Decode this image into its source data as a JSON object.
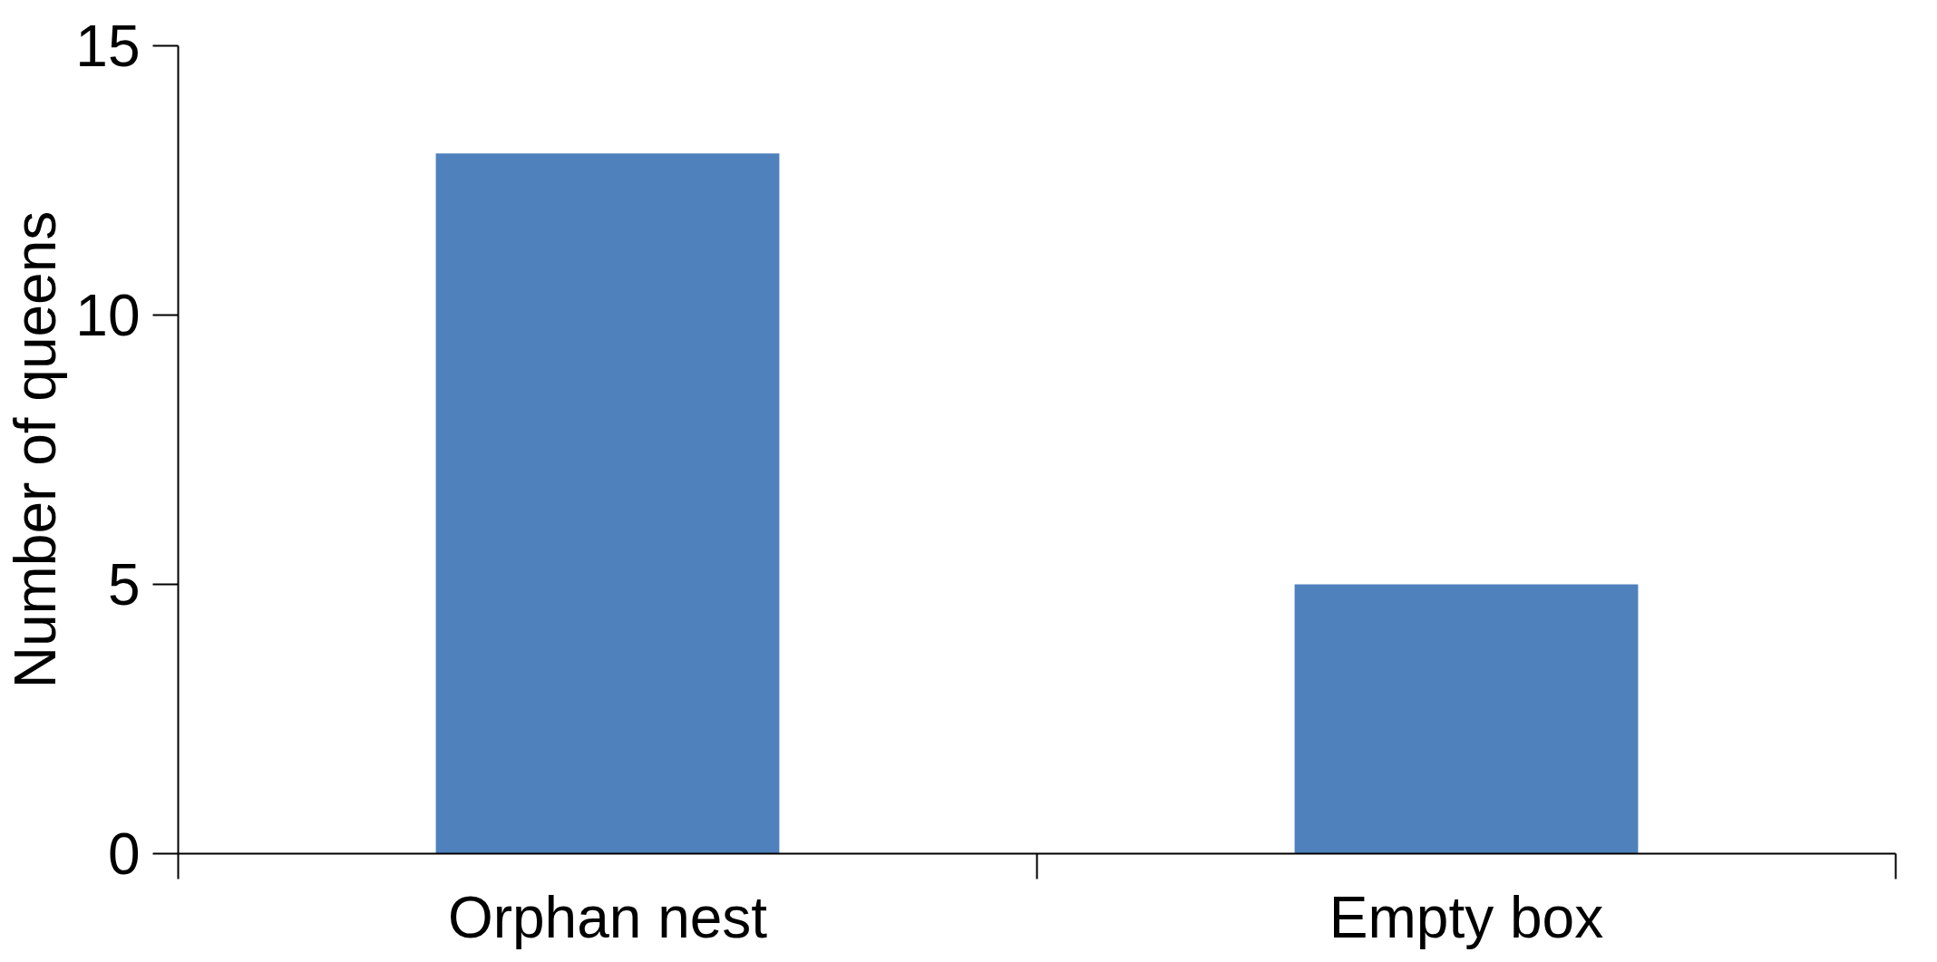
{
  "chart_data": {
    "type": "bar",
    "ylabel": "Number of queens",
    "categories": [
      "Orphan nest",
      "Empty box"
    ],
    "values": [
      13,
      5
    ],
    "color": "#4f81bd",
    "ylim": [
      0,
      15
    ],
    "yticks": [
      0,
      5,
      10,
      15
    ],
    "grid": false
  }
}
